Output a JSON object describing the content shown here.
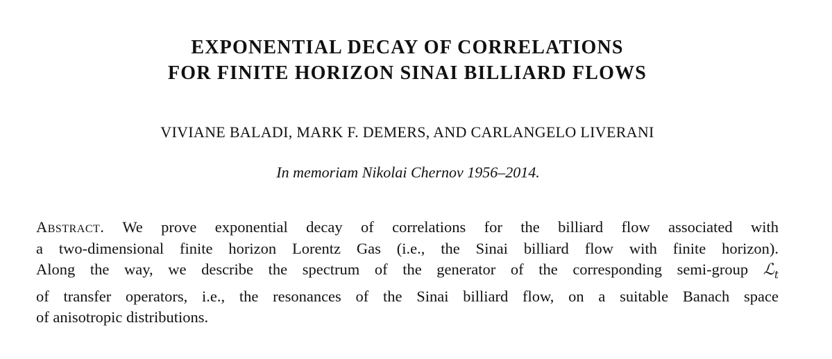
{
  "title": {
    "lines": [
      "EXPONENTIAL DECAY OF CORRELATIONS",
      "FOR FINITE HORIZON SINAI BILLIARD FLOWS"
    ]
  },
  "authors": "VIVIANE BALADI, MARK F. DEMERS, AND CARLANGELO LIVERANI",
  "dedication": "In memoriam Nikolai Chernov 1956–2014.",
  "abstract": {
    "label": "Abstract.",
    "lines": [
      "We prove exponential decay of correlations for the billiard flow associated with",
      "a two-dimensional finite horizon Lorentz Gas (i.e., the Sinai billiard flow with finite horizon).",
      "Along the way, we describe the spectrum of the generator of the corresponding semi-group",
      "of transfer operators, i.e., the resonances of the Sinai billiard flow, on a suitable Banach space",
      "of anisotropic distributions."
    ],
    "operator": "ℒ",
    "operator_subscript": "t"
  }
}
